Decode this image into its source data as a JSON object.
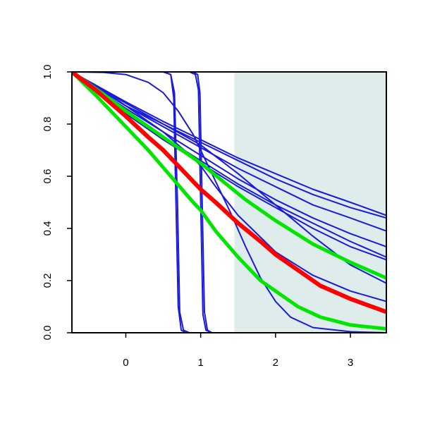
{
  "chart_data": {
    "type": "line",
    "title": "",
    "xlabel": "",
    "ylabel": "",
    "xlim": [
      -0.72,
      3.48
    ],
    "ylim": [
      0,
      1
    ],
    "x_ticks": [
      0,
      1,
      2,
      3
    ],
    "y_ticks": [
      0.0,
      0.2,
      0.4,
      0.6,
      0.8,
      1.0
    ],
    "x_tick_labels": [
      "0",
      "1",
      "2",
      "3"
    ],
    "y_tick_labels": [
      "0.0",
      "0.2",
      "0.4",
      "0.6",
      "0.8",
      "1.0"
    ],
    "grid": false,
    "legend": "none",
    "shaded_region": {
      "x_from": 1.45,
      "x_to": 3.48,
      "color": "#deeceb"
    },
    "series": [
      {
        "color": "#1a1adc",
        "width": 2,
        "x": [
          -0.72,
          0.0,
          0.5,
          1.0,
          1.5,
          2.0,
          2.5,
          3.0,
          3.48
        ],
        "values": [
          1.0,
          0.885,
          0.81,
          0.74,
          0.67,
          0.61,
          0.55,
          0.5,
          0.45
        ]
      },
      {
        "color": "#1a1adc",
        "width": 2,
        "x": [
          -0.72,
          0.0,
          0.5,
          1.0,
          1.5,
          2.0,
          2.5,
          3.0,
          3.48
        ],
        "values": [
          1.0,
          0.88,
          0.8,
          0.73,
          0.66,
          0.59,
          0.53,
          0.48,
          0.44
        ]
      },
      {
        "color": "#1a1adc",
        "width": 2,
        "x": [
          -0.72,
          0.0,
          0.5,
          1.0,
          1.5,
          2.0,
          2.5,
          3.0,
          3.48
        ],
        "values": [
          1.0,
          0.87,
          0.79,
          0.71,
          0.63,
          0.56,
          0.49,
          0.44,
          0.39
        ]
      },
      {
        "color": "#1a1adc",
        "width": 2,
        "x": [
          -0.72,
          0.0,
          0.5,
          1.0,
          1.5,
          2.0,
          2.5,
          3.0,
          3.48
        ],
        "values": [
          1.0,
          0.86,
          0.77,
          0.68,
          0.59,
          0.51,
          0.44,
          0.38,
          0.33
        ]
      },
      {
        "color": "#1a1adc",
        "width": 2,
        "x": [
          -0.72,
          0.0,
          0.5,
          1.0,
          1.5,
          2.0,
          2.5,
          3.0,
          3.48
        ],
        "values": [
          1.0,
          0.85,
          0.75,
          0.66,
          0.57,
          0.49,
          0.42,
          0.35,
          0.29
        ]
      },
      {
        "color": "#1a1adc",
        "width": 2,
        "x": [
          -0.72,
          0.0,
          0.5,
          1.0,
          1.5,
          2.0,
          2.5,
          3.0,
          3.48
        ],
        "values": [
          1.0,
          0.84,
          0.74,
          0.65,
          0.56,
          0.48,
          0.4,
          0.33,
          0.28
        ]
      },
      {
        "color": "#1a1adc",
        "width": 2,
        "x": [
          -0.72,
          0.0,
          0.5,
          1.0,
          1.5,
          2.0,
          2.5,
          3.0,
          3.48
        ],
        "values": [
          1.0,
          0.87,
          0.8,
          0.72,
          0.61,
          0.49,
          0.37,
          0.26,
          0.19
        ]
      },
      {
        "color": "#1a1adc",
        "width": 2,
        "x": [
          -0.72,
          -0.3,
          0.0,
          0.3,
          0.5,
          0.7,
          0.9,
          1.0,
          1.2,
          1.5,
          2.0,
          2.5,
          3.0,
          3.48
        ],
        "values": [
          1.0,
          0.93,
          0.87,
          0.81,
          0.77,
          0.72,
          0.67,
          0.64,
          0.56,
          0.45,
          0.31,
          0.22,
          0.16,
          0.12
        ]
      },
      {
        "color": "#1a1adc",
        "width": 2,
        "x": [
          -0.72,
          -0.3,
          0.0,
          0.3,
          0.5,
          0.7,
          0.9,
          1.0,
          1.2,
          1.4,
          1.6,
          1.8,
          2.0,
          2.2,
          2.5,
          3.0,
          3.48
        ],
        "values": [
          1.0,
          0.998,
          0.99,
          0.96,
          0.92,
          0.85,
          0.76,
          0.7,
          0.58,
          0.46,
          0.33,
          0.21,
          0.12,
          0.06,
          0.02,
          0.004,
          0.0
        ]
      },
      {
        "color": "#1a1adc",
        "width": 2,
        "x": [
          -0.72,
          0.3,
          0.5,
          0.6,
          0.64,
          0.67,
          0.7,
          0.74,
          0.8,
          3.48
        ],
        "values": [
          1.0,
          1.0,
          1.0,
          0.99,
          0.9,
          0.5,
          0.1,
          0.01,
          0.0,
          0.0
        ]
      },
      {
        "color": "#1a1adc",
        "width": 2,
        "x": [
          -0.72,
          0.3,
          0.5,
          0.6,
          0.65,
          0.69,
          0.72,
          0.77,
          0.85,
          3.48
        ],
        "values": [
          1.0,
          1.0,
          1.0,
          0.99,
          0.92,
          0.5,
          0.08,
          0.01,
          0.0,
          0.0
        ]
      },
      {
        "color": "#1a1adc",
        "width": 2,
        "x": [
          -0.72,
          0.6,
          0.85,
          0.93,
          0.97,
          1.0,
          1.03,
          1.07,
          1.15,
          3.48
        ],
        "values": [
          1.0,
          1.0,
          1.0,
          0.99,
          0.93,
          0.5,
          0.07,
          0.01,
          0.0,
          0.0
        ]
      },
      {
        "color": "#1a1adc",
        "width": 2,
        "x": [
          -0.72,
          0.6,
          0.9,
          0.96,
          0.99,
          1.02,
          1.05,
          1.09,
          1.15,
          3.48
        ],
        "values": [
          1.0,
          1.0,
          1.0,
          0.99,
          0.92,
          0.5,
          0.08,
          0.01,
          0.0,
          0.0
        ]
      },
      {
        "color": "#00e600",
        "width": 5,
        "x": [
          -0.72,
          -0.3,
          0.0,
          0.3,
          0.5,
          0.7,
          1.0,
          1.3,
          1.6,
          2.0,
          2.5,
          3.0,
          3.48
        ],
        "values": [
          1.0,
          0.915,
          0.85,
          0.79,
          0.75,
          0.71,
          0.65,
          0.58,
          0.51,
          0.43,
          0.34,
          0.27,
          0.21
        ]
      },
      {
        "color": "#00e600",
        "width": 5,
        "x": [
          -0.72,
          -0.4,
          0.0,
          0.3,
          0.6,
          0.9,
          1.0,
          1.2,
          1.5,
          1.8,
          2.0,
          2.3,
          2.6,
          3.0,
          3.48
        ],
        "values": [
          1.0,
          0.91,
          0.79,
          0.7,
          0.6,
          0.5,
          0.47,
          0.39,
          0.29,
          0.2,
          0.16,
          0.1,
          0.06,
          0.03,
          0.015
        ]
      },
      {
        "color": "#ff0000",
        "width": 6,
        "x": [
          -0.72,
          -0.4,
          0.0,
          0.3,
          0.5,
          0.7,
          0.9,
          1.0,
          1.2,
          1.5,
          1.8,
          2.0,
          2.3,
          2.6,
          3.0,
          3.48
        ],
        "values": [
          1.0,
          0.93,
          0.83,
          0.75,
          0.7,
          0.64,
          0.58,
          0.55,
          0.5,
          0.42,
          0.35,
          0.3,
          0.24,
          0.18,
          0.13,
          0.08
        ]
      }
    ]
  }
}
